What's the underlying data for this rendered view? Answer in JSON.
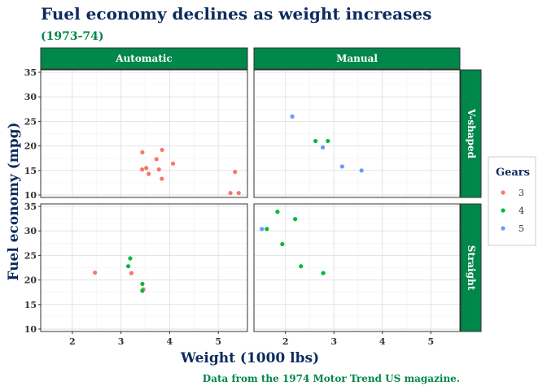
{
  "chart_data": {
    "type": "scatter",
    "title": "Fuel economy declines as weight increases",
    "subtitle": "(1973-74)",
    "caption": "Data from the 1974 Motor Trend US magazine.",
    "xlabel": "Weight (1000 lbs)",
    "ylabel": "Fuel economy (mpg)",
    "xlim": [
      1.35,
      5.6
    ],
    "ylim": [
      9.5,
      35.5
    ],
    "x_ticks": [
      "2",
      "3",
      "4",
      "5"
    ],
    "y_ticks": [
      "10",
      "15",
      "20",
      "25",
      "30",
      "35"
    ],
    "grid": true,
    "facet_cols": [
      "Automatic",
      "Manual"
    ],
    "facet_rows": [
      "V-shaped",
      "Straight"
    ],
    "legend": {
      "title": "Gears",
      "position": "right",
      "items": [
        {
          "label": "3",
          "color": "#F8766D"
        },
        {
          "label": "4",
          "color": "#00BA38"
        },
        {
          "label": "5",
          "color": "#619CFF"
        }
      ]
    },
    "colors": {
      "title": "#0d2b5e",
      "subtitle": "#00874a",
      "strip_fill": "#00874a",
      "strip_text": "#ffffff"
    },
    "series": [
      {
        "name": "3",
        "color": "#F8766D",
        "points": [
          {
            "x": 3.44,
            "y": 18.7,
            "facet": "Automatic|V-shaped"
          },
          {
            "x": 3.57,
            "y": 14.3,
            "facet": "Automatic|V-shaped"
          },
          {
            "x": 4.07,
            "y": 16.4,
            "facet": "Automatic|V-shaped"
          },
          {
            "x": 3.73,
            "y": 17.3,
            "facet": "Automatic|V-shaped"
          },
          {
            "x": 3.78,
            "y": 15.2,
            "facet": "Automatic|V-shaped"
          },
          {
            "x": 5.25,
            "y": 10.4,
            "facet": "Automatic|V-shaped"
          },
          {
            "x": 5.42,
            "y": 10.4,
            "facet": "Automatic|V-shaped"
          },
          {
            "x": 5.345,
            "y": 14.7,
            "facet": "Automatic|V-shaped"
          },
          {
            "x": 3.52,
            "y": 15.5,
            "facet": "Automatic|V-shaped"
          },
          {
            "x": 3.435,
            "y": 15.2,
            "facet": "Automatic|V-shaped"
          },
          {
            "x": 3.84,
            "y": 13.3,
            "facet": "Automatic|V-shaped"
          },
          {
            "x": 3.845,
            "y": 19.2,
            "facet": "Automatic|V-shaped"
          },
          {
            "x": 3.215,
            "y": 21.4,
            "facet": "Automatic|Straight"
          },
          {
            "x": 3.46,
            "y": 18.1,
            "facet": "Automatic|Straight"
          },
          {
            "x": 2.465,
            "y": 21.5,
            "facet": "Automatic|Straight"
          }
        ]
      },
      {
        "name": "4",
        "color": "#00BA38",
        "points": [
          {
            "x": 3.19,
            "y": 24.4,
            "facet": "Automatic|Straight"
          },
          {
            "x": 3.15,
            "y": 22.8,
            "facet": "Automatic|Straight"
          },
          {
            "x": 3.44,
            "y": 19.2,
            "facet": "Automatic|Straight"
          },
          {
            "x": 3.44,
            "y": 17.8,
            "facet": "Automatic|Straight"
          },
          {
            "x": 2.62,
            "y": 21.0,
            "facet": "Manual|V-shaped"
          },
          {
            "x": 2.875,
            "y": 21.0,
            "facet": "Manual|V-shaped"
          },
          {
            "x": 2.32,
            "y": 22.8,
            "facet": "Manual|Straight"
          },
          {
            "x": 2.2,
            "y": 32.4,
            "facet": "Manual|Straight"
          },
          {
            "x": 1.615,
            "y": 30.4,
            "facet": "Manual|Straight"
          },
          {
            "x": 1.835,
            "y": 33.9,
            "facet": "Manual|Straight"
          },
          {
            "x": 1.935,
            "y": 27.3,
            "facet": "Manual|Straight"
          },
          {
            "x": 2.78,
            "y": 21.4,
            "facet": "Manual|Straight"
          }
        ]
      },
      {
        "name": "5",
        "color": "#619CFF",
        "points": [
          {
            "x": 2.14,
            "y": 26.0,
            "facet": "Manual|V-shaped"
          },
          {
            "x": 3.17,
            "y": 15.8,
            "facet": "Manual|V-shaped"
          },
          {
            "x": 2.77,
            "y": 19.7,
            "facet": "Manual|V-shaped"
          },
          {
            "x": 3.57,
            "y": 15.0,
            "facet": "Manual|V-shaped"
          },
          {
            "x": 1.513,
            "y": 30.4,
            "facet": "Manual|Straight"
          }
        ]
      }
    ]
  }
}
